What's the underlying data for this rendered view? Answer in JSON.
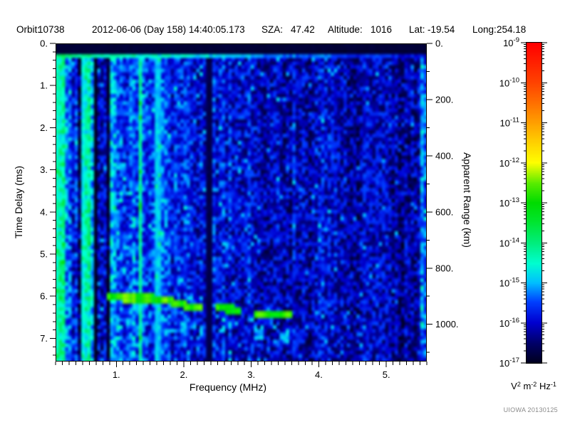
{
  "header": {
    "orbit_label": "Orbit:",
    "orbit_value": "10738",
    "datetime": "2012-06-06 (Day 158) 14:40:05.173",
    "sza_label": "SZA:",
    "sza_value": "47.42",
    "altitude_label": "Altitude:",
    "altitude_value": "1016",
    "lat_label": "Lat:",
    "lat_value": "-19.54",
    "long_label": "Long:",
    "long_value": "254.18"
  },
  "credit": "UIOWA 20130125",
  "colors": {
    "background": "#ffffff",
    "text": "#000000",
    "credit_text": "#8a8a8a",
    "axis": "#000000"
  },
  "chart_data": {
    "type": "heatmap",
    "title": "",
    "x_axis": {
      "label": "Frequency (MHz)",
      "min": 0.1,
      "max": 5.6,
      "major_ticks": [
        1,
        2,
        3,
        4,
        5
      ],
      "tick_labels": [
        "1.",
        "2.",
        "3.",
        "4.",
        "5."
      ],
      "minor_step": 0.1
    },
    "y_axis_left": {
      "label": "Time Delay (ms)",
      "min": 0,
      "max": 7.55,
      "direction": "down",
      "major_ticks": [
        0,
        1,
        2,
        3,
        4,
        5,
        6,
        7
      ],
      "tick_labels": [
        "0.",
        "1.",
        "2.",
        "3.",
        "4.",
        "5.",
        "6.",
        "7."
      ],
      "minor_step": 0.2
    },
    "y_axis_right": {
      "label": "Apparent Range (km)",
      "min": 0,
      "max": 1132.5,
      "km_per_ms": 150,
      "major_ticks": [
        0,
        200,
        400,
        600,
        800,
        1000
      ],
      "tick_labels": [
        "0.",
        "200.",
        "400.",
        "600.",
        "800.",
        "1000."
      ],
      "minor_step": 100
    },
    "colorbar": {
      "scale": "log",
      "min_exponent": -17,
      "max_exponent": -9,
      "tick_exponents": [
        -9,
        -10,
        -11,
        -12,
        -13,
        -14,
        -15,
        -16,
        -17
      ],
      "tick_mantissa_base": "10",
      "unit": {
        "b1": "V",
        "s1": "2",
        "b2": "m",
        "s2": "-2",
        "b3": "Hz",
        "s3": "-1"
      },
      "colormap": [
        [
          0.0,
          "#000020"
        ],
        [
          0.06,
          "#000068"
        ],
        [
          0.125,
          "#0000D0"
        ],
        [
          0.19,
          "#0040FF"
        ],
        [
          0.25,
          "#00C0FF"
        ],
        [
          0.31,
          "#00FFD0"
        ],
        [
          0.375,
          "#00EE7C"
        ],
        [
          0.44,
          "#00E630"
        ],
        [
          0.5,
          "#00DC00"
        ],
        [
          0.56,
          "#58EC00"
        ],
        [
          0.625,
          "#FFFF00"
        ],
        [
          0.69,
          "#FFD000"
        ],
        [
          0.75,
          "#FFA000"
        ],
        [
          0.8125,
          "#FF7000"
        ],
        [
          0.875,
          "#FF4400"
        ],
        [
          1.0,
          "#FF0000"
        ]
      ]
    },
    "features": {
      "top_black_band_ms": [
        0,
        0.22
      ],
      "transmit_pulse_band_ms": [
        0.22,
        0.38
      ],
      "plasma_stripe_region_mhz": [
        0.1,
        1.02
      ],
      "bright_lines_mhz": [
        [
          0.14,
          0.14
        ],
        [
          0.23,
          0.1
        ],
        [
          0.52,
          0.1
        ],
        [
          1.35,
          0.16
        ],
        [
          1.62,
          0.07
        ]
      ],
      "dark_band_mhz": [
        0.3,
        0.5
      ],
      "interference_null_mhz": [
        2.33,
        2.41
      ],
      "right_edge_bright_mhz": 5.5,
      "echo_trace": {
        "f_start": 0.85,
        "f_end": 3.62,
        "delay_points_mhz_ms": [
          [
            0.85,
            6.02
          ],
          [
            1.7,
            6.07
          ],
          [
            2.1,
            6.25
          ],
          [
            2.7,
            6.3
          ],
          [
            3.1,
            6.42
          ],
          [
            3.6,
            6.45
          ]
        ],
        "gaps_mhz": [
          [
            2.28,
            2.47
          ],
          [
            2.86,
            3.04
          ]
        ],
        "half_width_ms": 0.1
      }
    },
    "noise": {
      "seed": 20130125,
      "grid_nx": 116,
      "grid_ny": 88
    }
  }
}
